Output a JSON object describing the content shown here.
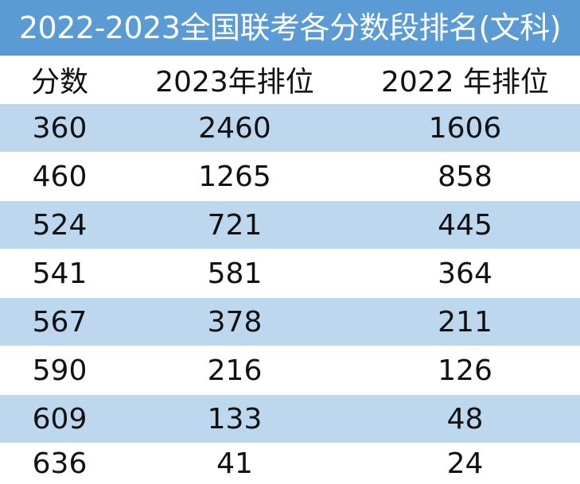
{
  "title": "2022-2023全国联考各分数段排名(文科)",
  "headers": [
    "分数",
    "2023年排位",
    "2022 年排位"
  ],
  "rows": [
    [
      "360",
      "2460",
      "1606"
    ],
    [
      "460",
      "1265",
      "858"
    ],
    [
      "524",
      "721",
      "445"
    ],
    [
      "541",
      "581",
      "364"
    ],
    [
      "567",
      "378",
      "211"
    ],
    [
      "590",
      "216",
      "126"
    ],
    [
      "609",
      "133",
      "48"
    ],
    [
      "636",
      "41",
      "24"
    ]
  ],
  "colors": {
    "title_bg": "#5b9bd5",
    "title_text": "#ffffff",
    "stripe": "#bdd7ee",
    "plain": "#ffffff"
  }
}
